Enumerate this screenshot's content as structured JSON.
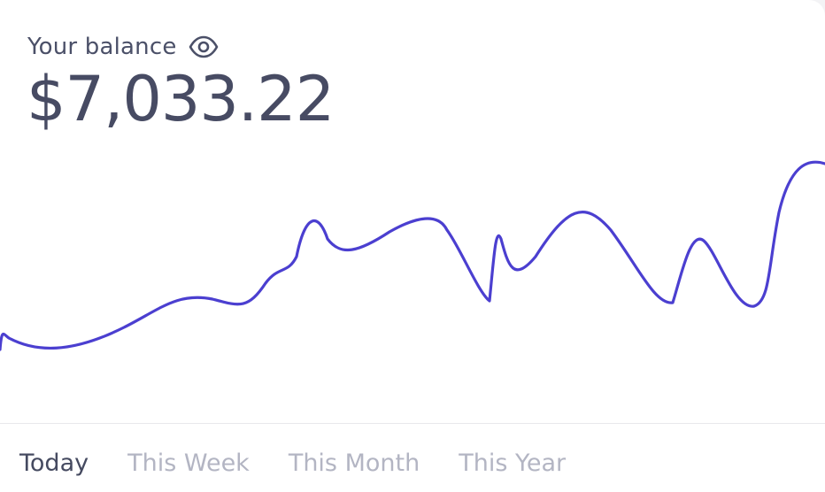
{
  "balance": {
    "label": "Your balance",
    "amount": "$7,033.22",
    "visibility_icon": "eye-icon"
  },
  "tabs": [
    {
      "label": "Today",
      "active": true
    },
    {
      "label": "This Week",
      "active": false
    },
    {
      "label": "This Month",
      "active": false
    },
    {
      "label": "This Year",
      "active": false
    }
  ],
  "colors": {
    "line": "#4b3fd0",
    "text_primary": "#474b63",
    "tab_inactive": "#b3b5c3"
  },
  "chart_data": {
    "type": "line",
    "series": [
      {
        "values": [
          0.06,
          0.02,
          0.04,
          0.12,
          0.22,
          0.2,
          0.28,
          0.4,
          0.34,
          0.44,
          0.4,
          0.08,
          0.3,
          0.18,
          0.33,
          0.1,
          0.32,
          0.1,
          0.48
        ]
      }
    ]
  }
}
